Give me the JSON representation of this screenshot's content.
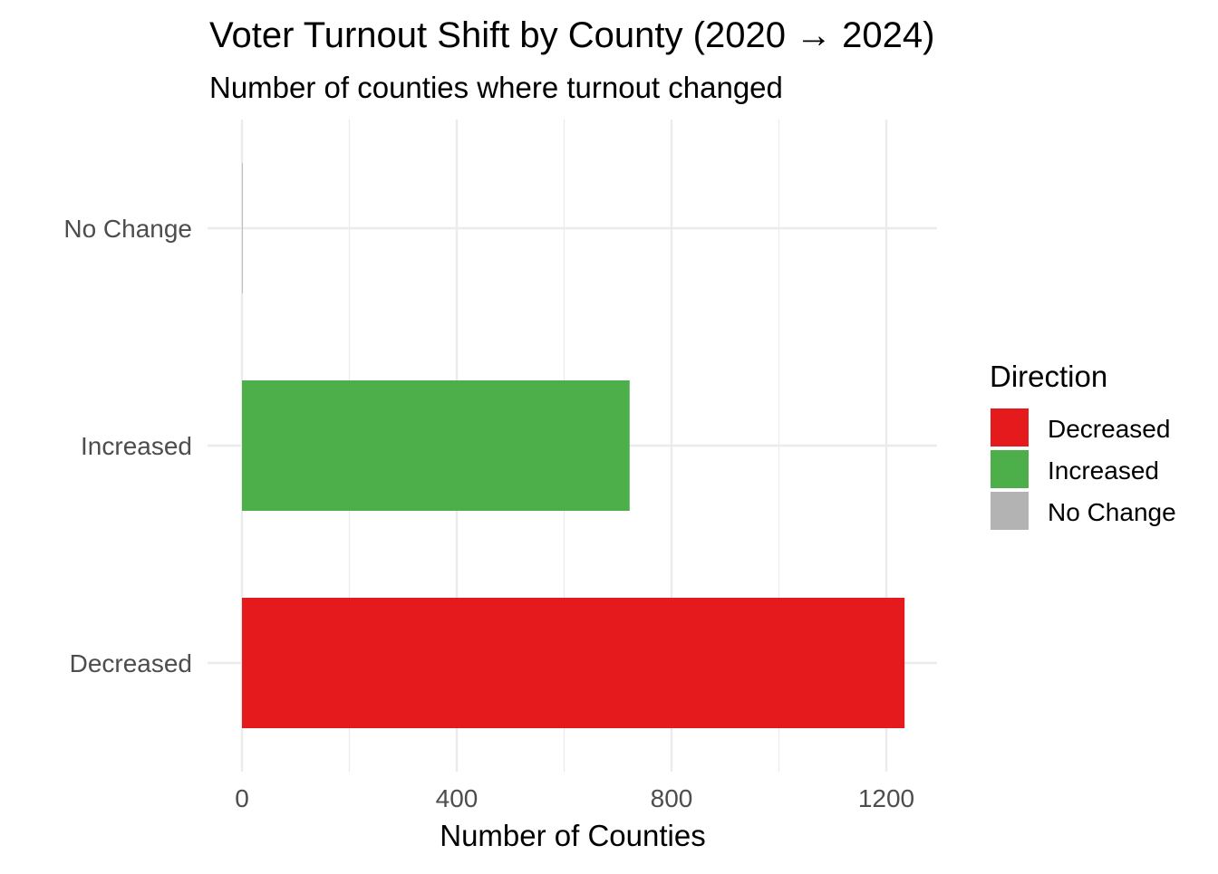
{
  "chart_data": {
    "type": "bar",
    "orientation": "horizontal",
    "title": "Voter Turnout Shift by County (2020 → 2024)",
    "subtitle": "Number of counties where turnout changed",
    "xlabel": "Number of Counties",
    "ylabel": "",
    "categories": [
      "Decreased",
      "Increased",
      "No Change"
    ],
    "values": [
      1234,
      722,
      1
    ],
    "colors": [
      "#E41A1C",
      "#4DAF4A",
      "#B3B3B3"
    ],
    "xlim": [
      0,
      1295
    ],
    "x_ticks": [
      0,
      400,
      800,
      1200
    ],
    "grid": true,
    "legend": {
      "title": "Direction",
      "position": "right",
      "entries": [
        {
          "label": "Decreased",
          "color": "#E41A1C"
        },
        {
          "label": "Increased",
          "color": "#4DAF4A"
        },
        {
          "label": "No Change",
          "color": "#B3B3B3"
        }
      ]
    }
  }
}
